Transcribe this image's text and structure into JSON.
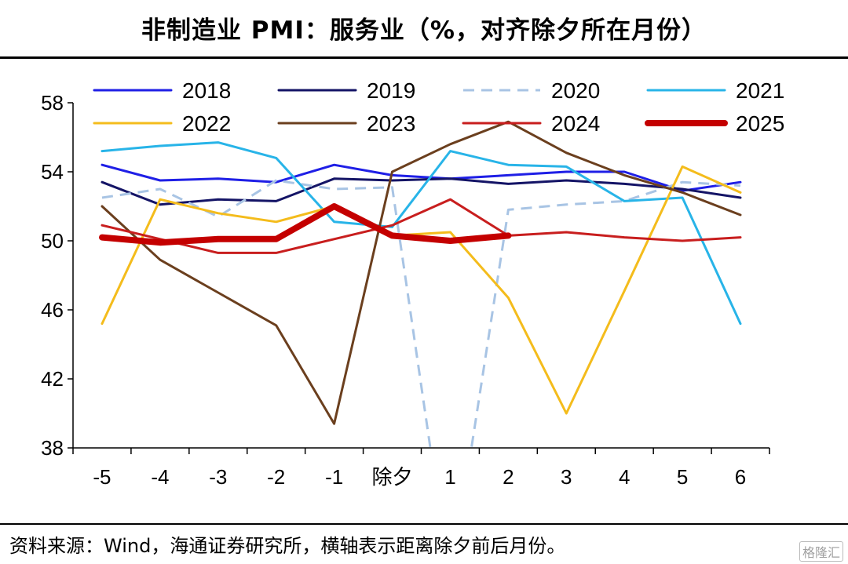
{
  "header": {
    "title": "非制造业 PMI：服务业（%，对齐除夕所在月份）"
  },
  "footer": {
    "source": "资料来源：Wind，海通证券研究所，横轴表示距离除夕前后月份。",
    "watermark": "格隆汇"
  },
  "chart_data": {
    "type": "line",
    "title": "非制造业 PMI：服务业（%，对齐除夕所在月份）",
    "xlabel": "",
    "ylabel": "",
    "categories": [
      "-5",
      "-4",
      "-3",
      "-2",
      "-1",
      "除夕",
      "1",
      "2",
      "3",
      "4",
      "5",
      "6"
    ],
    "ylim": [
      38,
      58
    ],
    "yticks": [
      38,
      42,
      46,
      50,
      54,
      58
    ],
    "legend_placement": "top",
    "series": [
      {
        "name": "2018",
        "color": "#1f1fe6",
        "style": "solid",
        "width": 3,
        "values": [
          54.4,
          53.5,
          53.6,
          53.4,
          54.4,
          53.8,
          53.6,
          53.8,
          54.0,
          54.0,
          52.9,
          53.4
        ]
      },
      {
        "name": "2019",
        "color": "#141466",
        "style": "solid",
        "width": 3,
        "values": [
          53.4,
          52.1,
          52.4,
          52.3,
          53.6,
          53.5,
          53.6,
          53.3,
          53.5,
          53.3,
          53.0,
          52.5
        ]
      },
      {
        "name": "2020",
        "color": "#a8c4e4",
        "style": "dashed",
        "width": 3,
        "values": [
          52.5,
          53.0,
          51.4,
          53.5,
          53.0,
          53.1,
          30.1,
          51.8,
          52.1,
          52.3,
          53.4,
          53.2
        ]
      },
      {
        "name": "2021",
        "color": "#28b4e8",
        "style": "solid",
        "width": 3,
        "values": [
          55.2,
          55.5,
          55.7,
          54.8,
          51.1,
          50.8,
          55.2,
          54.4,
          54.3,
          52.3,
          52.5,
          45.2
        ]
      },
      {
        "name": "2022",
        "color": "#f4bc1c",
        "style": "solid",
        "width": 3,
        "values": [
          45.2,
          52.4,
          51.6,
          51.1,
          52.0,
          50.3,
          50.5,
          46.7,
          40.0,
          47.1,
          54.3,
          52.8
        ]
      },
      {
        "name": "2023",
        "color": "#6b3f1e",
        "style": "solid",
        "width": 3,
        "values": [
          52.0,
          48.9,
          47.0,
          45.1,
          39.4,
          54.0,
          55.6,
          56.9,
          55.1,
          53.8,
          52.8,
          51.5
        ]
      },
      {
        "name": "2024",
        "color": "#c81e1e",
        "style": "solid",
        "width": 3,
        "values": [
          50.9,
          50.1,
          49.3,
          49.3,
          50.1,
          50.9,
          52.4,
          50.3,
          50.5,
          50.2,
          50.0,
          50.2
        ]
      },
      {
        "name": "2025",
        "color": "#c40000",
        "style": "solid",
        "width": 8,
        "values": [
          50.2,
          49.9,
          50.1,
          50.1,
          52.0,
          50.3,
          50.0,
          50.3,
          null,
          null,
          null,
          null
        ]
      }
    ]
  }
}
